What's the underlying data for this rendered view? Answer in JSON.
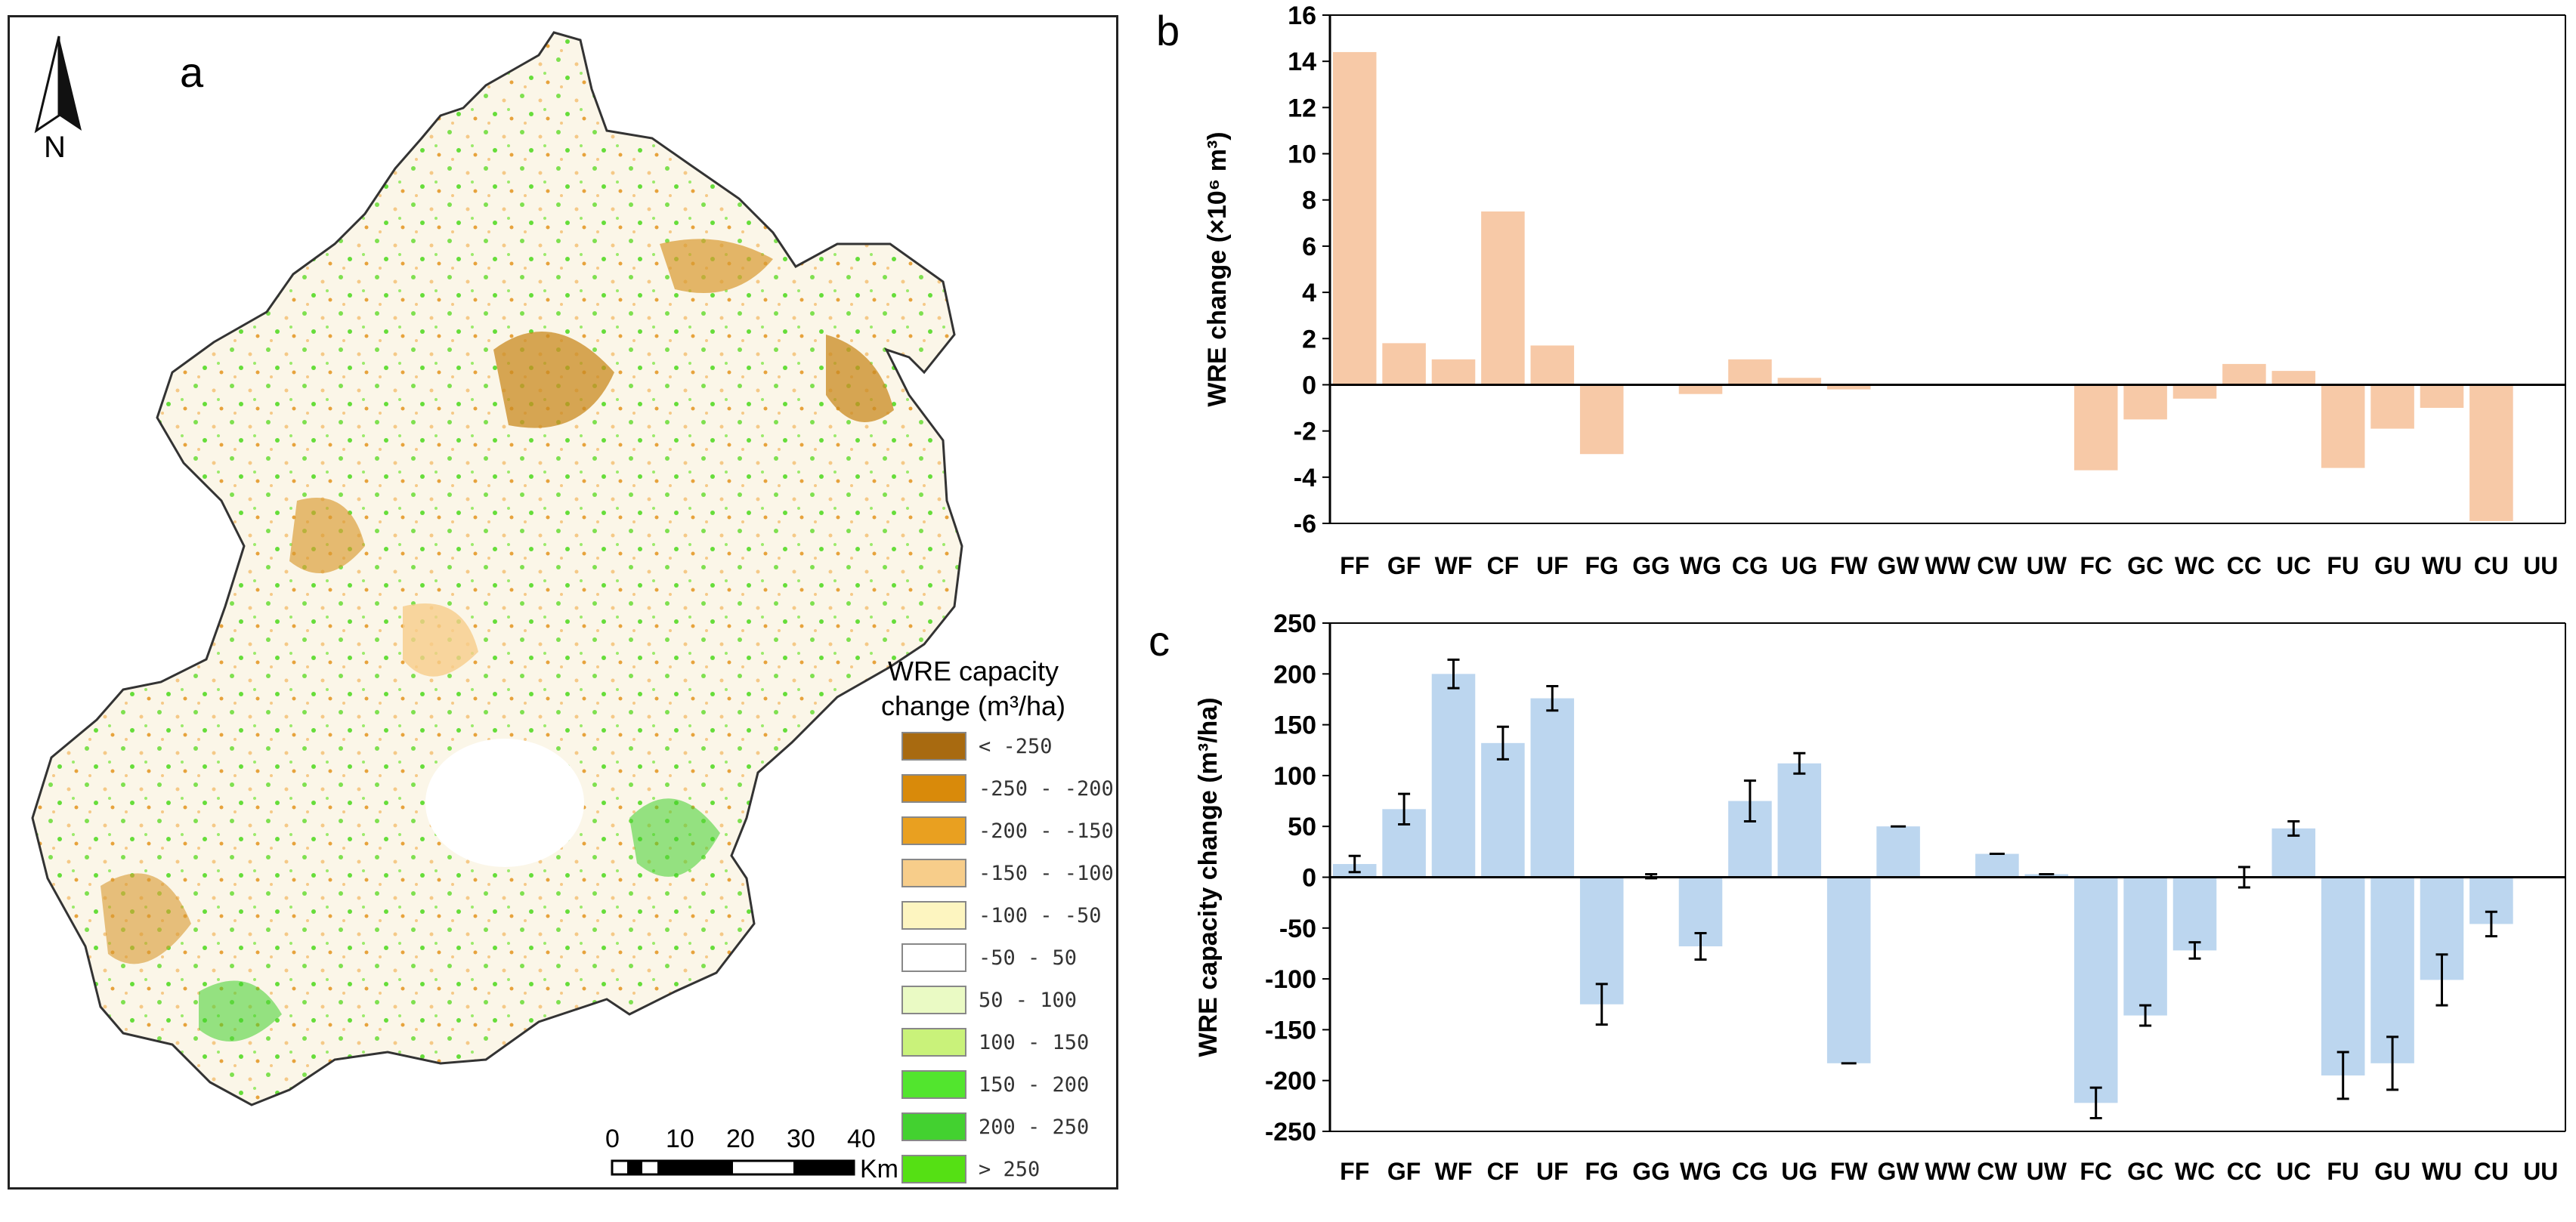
{
  "map_panel": {
    "letter": "a",
    "north_label": "N",
    "legend": {
      "title_line1": "WRE capacity",
      "title_line2": "change (m³/ha)",
      "classes": [
        {
          "label": "< -250",
          "color": "#a86a10"
        },
        {
          "label": "-250 - -200",
          "color": "#d98a0a"
        },
        {
          "label": "-200 - -150",
          "color": "#e9a020"
        },
        {
          "label": "-150 - -100",
          "color": "#f7cd8a"
        },
        {
          "label": "-100 - -50",
          "color": "#fdf5c0"
        },
        {
          "label": "-50 - 50",
          "color": "#ffffff"
        },
        {
          "label": "50 - 100",
          "color": "#eafac4"
        },
        {
          "label": "100 - 150",
          "color": "#c9f27a"
        },
        {
          "label": "150 - 200",
          "color": "#52e52e"
        },
        {
          "label": "200 - 250",
          "color": "#43d130"
        },
        {
          "label": "> 250",
          "color": "#55e014"
        }
      ]
    },
    "scale_bar": {
      "ticks": [
        "0",
        "10",
        "20",
        "30",
        "40"
      ],
      "unit": "Km"
    }
  },
  "chart_data": [
    {
      "panel": "b",
      "type": "bar",
      "title": "",
      "xlabel": "",
      "ylabel": "WRE  change (×10⁶ m³)",
      "ylim": [
        -6,
        16
      ],
      "yticks": [
        -6,
        -4,
        -2,
        0,
        2,
        4,
        6,
        8,
        10,
        12,
        14,
        16
      ],
      "color": "#f7c9a7",
      "categories": [
        "FF",
        "GF",
        "WF",
        "CF",
        "UF",
        "FG",
        "GG",
        "WG",
        "CG",
        "UG",
        "FW",
        "GW",
        "WW",
        "CW",
        "UW",
        "FC",
        "GC",
        "WC",
        "CC",
        "UC",
        "FU",
        "GU",
        "WU",
        "CU",
        "UU"
      ],
      "values": [
        14.4,
        1.8,
        1.1,
        7.5,
        1.7,
        -3.0,
        0,
        -0.4,
        1.1,
        0.3,
        -0.2,
        0,
        0,
        -0.05,
        0,
        -3.7,
        -1.5,
        -0.6,
        0.9,
        0.6,
        -3.6,
        -1.9,
        -1.0,
        -5.9,
        0
      ]
    },
    {
      "panel": "c",
      "type": "bar",
      "title": "",
      "xlabel": "",
      "ylabel": "WRE capacity change (m³/ha)",
      "ylim": [
        -250,
        250
      ],
      "yticks": [
        -250,
        -200,
        -150,
        -100,
        -50,
        0,
        50,
        100,
        150,
        200,
        250
      ],
      "color": "#bcd6ef",
      "categories": [
        "FF",
        "GF",
        "WF",
        "CF",
        "UF",
        "FG",
        "GG",
        "WG",
        "CG",
        "UG",
        "FW",
        "GW",
        "WW",
        "CW",
        "UW",
        "FC",
        "GC",
        "WC",
        "CC",
        "UC",
        "FU",
        "GU",
        "WU",
        "CU",
        "UU"
      ],
      "values": [
        13,
        67,
        200,
        132,
        176,
        -125,
        1,
        -68,
        75,
        112,
        -183,
        50,
        0,
        23,
        3,
        -222,
        -136,
        -72,
        0,
        48,
        -195,
        -183,
        -101,
        -46,
        0
      ],
      "errors": [
        8,
        15,
        14,
        16,
        12,
        20,
        2,
        13,
        20,
        10,
        0,
        0,
        0,
        0,
        0,
        15,
        10,
        8,
        10,
        7,
        23,
        26,
        25,
        12,
        0
      ]
    }
  ]
}
